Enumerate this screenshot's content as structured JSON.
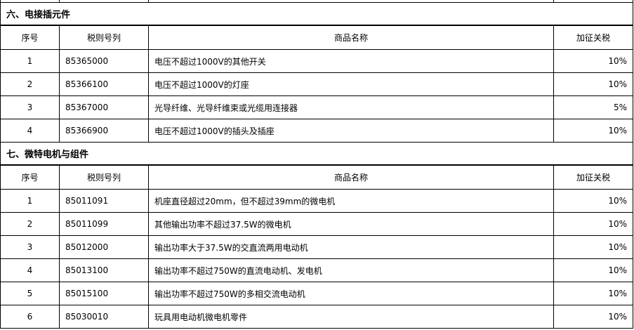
{
  "sections": [
    {
      "title": "六、电接插元件",
      "headers": [
        "序号",
        "税则号列",
        "商品名称",
        "加征关税"
      ],
      "rows": [
        [
          "1",
          "85365000",
          "电压不超过1000V的其他开关",
          "10%"
        ],
        [
          "2",
          "85366100",
          "电压不超过1000V的灯座",
          "10%"
        ],
        [
          "3",
          "85367000",
          "光导纤维、光导纤维束或光缆用连接器",
          "5%"
        ],
        [
          "4",
          "85366900",
          "电压不超过1000V的插头及插座",
          "10%"
        ]
      ]
    },
    {
      "title": "七、微特电机与组件",
      "headers": [
        "序号",
        "税则号列",
        "商品名称",
        "加征关税"
      ],
      "rows": [
        [
          "1",
          "85011091",
          "机座直径超过20mm，但不超过39mm的微电机",
          "10%"
        ],
        [
          "2",
          "85011099",
          "其他输出功率不超过37.5W的微电机",
          "10%"
        ],
        [
          "3",
          "85012000",
          "输出功率大于37.5W的交直流两用电动机",
          "10%"
        ],
        [
          "4",
          "85013100",
          "输出功率不超过750W的直流电动机、发电机",
          "10%"
        ],
        [
          "5",
          "85015100",
          "输出功率不超过750W的多相交流电动机",
          "10%"
        ],
        [
          "6",
          "85030010",
          "玩具用电动机微电机零件",
          "10%"
        ]
      ]
    }
  ]
}
